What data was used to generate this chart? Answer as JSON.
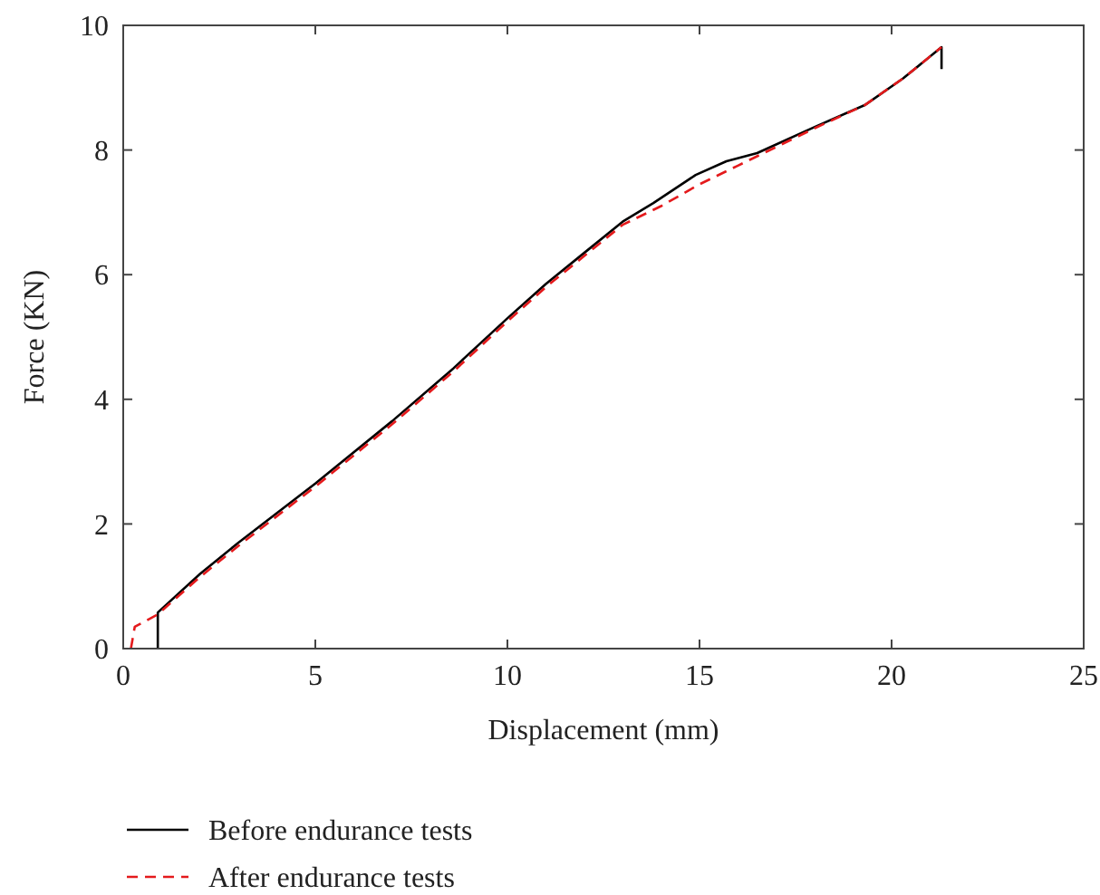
{
  "chart_data": {
    "type": "line",
    "xlabel": "Displacement (mm)",
    "ylabel": "Force (KN)",
    "xlim": [
      0,
      25
    ],
    "ylim": [
      0,
      10
    ],
    "xticks": [
      0,
      5,
      10,
      15,
      20,
      25
    ],
    "yticks": [
      0,
      2,
      4,
      6,
      8,
      10
    ],
    "grid": false,
    "legend": "bottom",
    "marker": "none",
    "series": [
      {
        "name": "Before endurance tests",
        "color": "#000000",
        "line_style": "solid",
        "x": [
          0.9,
          0.9,
          2,
          3,
          5,
          7,
          8.6,
          10,
          11,
          12,
          13,
          13.8,
          14.9,
          15.7,
          16.5,
          18,
          19.3,
          20.3,
          21.3,
          21.3
        ],
        "values": [
          0,
          0.58,
          1.2,
          1.7,
          2.65,
          3.65,
          4.5,
          5.3,
          5.85,
          6.35,
          6.85,
          7.15,
          7.6,
          7.82,
          7.95,
          8.37,
          8.72,
          9.15,
          9.65,
          9.3
        ]
      },
      {
        "name": "After endurance tests",
        "color": "#e41a1c",
        "line_style": "dashed",
        "x": [
          0.2,
          0.3,
          0.9,
          2,
          3,
          5,
          7,
          8.6,
          10,
          11,
          12,
          13,
          14,
          15,
          16,
          17,
          18,
          19.3,
          20.3,
          21.3
        ],
        "values": [
          0,
          0.35,
          0.55,
          1.15,
          1.65,
          2.6,
          3.6,
          4.45,
          5.25,
          5.8,
          6.3,
          6.8,
          7.1,
          7.45,
          7.75,
          8.05,
          8.35,
          8.72,
          9.15,
          9.65
        ]
      }
    ]
  }
}
